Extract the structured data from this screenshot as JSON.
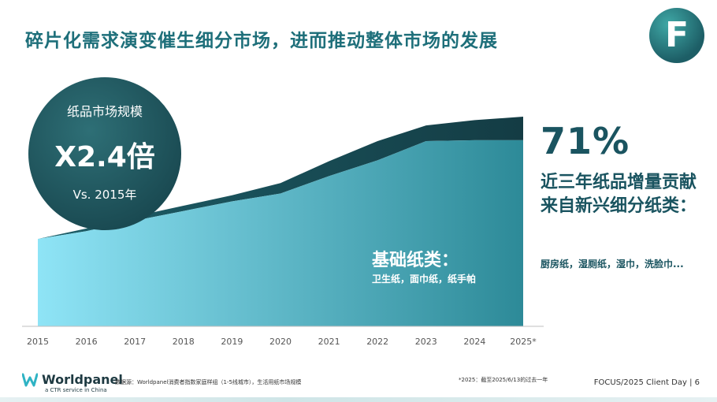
{
  "title": "碎片化需求演变催生细分市场，进而推动整体市场的发展",
  "logo_letter": "F",
  "badge": {
    "label": "纸品市场规模",
    "value": "X2.4倍",
    "sub": "Vs. 2015年"
  },
  "base_category": {
    "label": "基础纸类：",
    "examples": "卫生纸，面巾纸，纸手帕"
  },
  "highlight": {
    "percent": "71%",
    "description": "近三年纸品增量贡献来自新兴细分纸类：",
    "examples": "厨房纸，湿厕纸，湿巾，洗脸巾..."
  },
  "chart_data": {
    "type": "area",
    "stacked": true,
    "x": [
      "2015",
      "2016",
      "2017",
      "2018",
      "2019",
      "2020",
      "2021",
      "2022",
      "2023",
      "2024",
      "2025*"
    ],
    "series": [
      {
        "name": "基础纸类",
        "values": [
          1.0,
          1.09,
          1.21,
          1.32,
          1.43,
          1.52,
          1.72,
          1.9,
          2.12,
          2.13,
          2.13
        ]
      },
      {
        "name": "新兴细分纸类",
        "values": [
          0.0,
          0.03,
          0.05,
          0.06,
          0.07,
          0.12,
          0.17,
          0.22,
          0.18,
          0.23,
          0.27
        ]
      }
    ],
    "ylim": [
      0,
      2.4
    ],
    "grid": false,
    "colors": {
      "base_light": "#8fe4f6",
      "base_dark": "#2d8a98",
      "new_light": "#1d5f69",
      "new_dark": "#143c44"
    }
  },
  "footer": {
    "brand": "Worldpanel",
    "tagline": "a CTR service in China",
    "source": "数据源：Worldpanel消费者指数家庭样组（1-5线城市），生活用纸市场规模",
    "note": "*2025：截至2025/6/13的过去一年",
    "page": "FOCUS/2025 Client Day | 6"
  }
}
